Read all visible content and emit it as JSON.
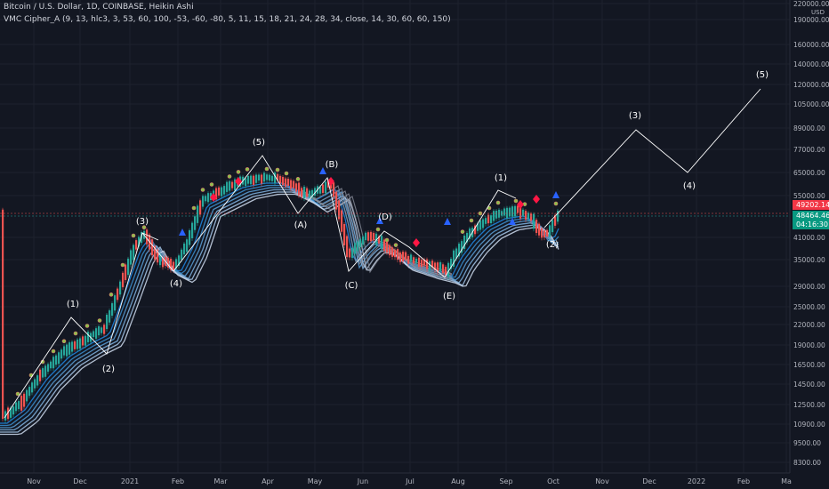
{
  "header": {
    "symbol_line": "Bitcoin / U.S. Dollar, 1D, COINBASE, Heikin Ashi",
    "indicator_line": "VMC Cipher_A (9, 13, hlc3, 3, 53, 60, 100, -53, -60, -80, 5, 11, 15, 18, 21, 24, 28, 34, close, 14, 30, 60, 60, 150)"
  },
  "colors": {
    "background": "#131722",
    "grid": "#1e222d",
    "up_candle": "#26a69a",
    "down_candle": "#ef5350",
    "wave_line": "#ffffff",
    "ribbon_up": "#3b8fd0",
    "ribbon_down": "#7a7f8c",
    "price_tag_red": "#f23645",
    "price_tag_green": "#089981",
    "signal_blue_triangle": "#2962ff",
    "signal_red_diamond": "#ff1744",
    "signal_green_dot": "#4caf50"
  },
  "price_axis": {
    "currency": "USD",
    "ticks": [
      "220000.00",
      "190000.00",
      "160000.00",
      "140000.00",
      "120000.00",
      "105000.00",
      "89000.00",
      "77000.00",
      "65000.00",
      "55000.00",
      "41000.00",
      "35000.00",
      "29000.00",
      "25000.00",
      "22000.00",
      "19000.00",
      "16500.00",
      "14500.00",
      "12500.00",
      "10900.00",
      "9500.00",
      "8300.00"
    ],
    "current_price_red": "49202.14",
    "current_price_green": "48464.46",
    "countdown": "04:16:30"
  },
  "time_axis": {
    "ticks": [
      "Nov",
      "Dec",
      "2021",
      "Feb",
      "Mar",
      "Apr",
      "May",
      "Jun",
      "Jul",
      "Aug",
      "Sep",
      "Oct",
      "Nov",
      "Dec",
      "2022",
      "Feb",
      "Ma"
    ]
  },
  "wave_labels": [
    "(1)",
    "(2)",
    "(3)",
    "(4)",
    "(5)",
    "(A)",
    "(B)",
    "(C)",
    "(D)",
    "(E)",
    "(1)",
    "(2)",
    "(3)",
    "(4)",
    "(5)"
  ],
  "chart_data": {
    "type": "candlestick",
    "y_scale": "log",
    "ylim": [
      7800,
      250000
    ],
    "x_months": [
      "2020-10",
      "2020-11",
      "2020-12",
      "2021-01",
      "2021-02",
      "2021-03",
      "2021-04",
      "2021-05",
      "2021-06",
      "2021-07",
      "2021-08",
      "2021-09",
      "2021-10",
      "2021-11",
      "2021-12",
      "2022-01",
      "2022-02",
      "2022-03"
    ],
    "series": [
      {
        "name": "BTC price path (approx)",
        "points": [
          {
            "date": "2020-10-01",
            "price": 10800
          },
          {
            "date": "2020-10-20",
            "price": 12200
          },
          {
            "date": "2020-11-10",
            "price": 15500
          },
          {
            "date": "2020-11-24",
            "price": 18500
          },
          {
            "date": "2020-12-15",
            "price": 19500
          },
          {
            "date": "2021-01-08",
            "price": 38500
          },
          {
            "date": "2021-01-22",
            "price": 32000
          },
          {
            "date": "2021-02-05",
            "price": 39000
          },
          {
            "date": "2021-02-20",
            "price": 55000
          },
          {
            "date": "2021-03-13",
            "price": 60000
          },
          {
            "date": "2021-04-14",
            "price": 63000
          },
          {
            "date": "2021-04-25",
            "price": 50000
          },
          {
            "date": "2021-05-08",
            "price": 58000
          },
          {
            "date": "2021-05-19",
            "price": 34000
          },
          {
            "date": "2021-06-10",
            "price": 38000
          },
          {
            "date": "2021-06-22",
            "price": 31000
          },
          {
            "date": "2021-07-20",
            "price": 30000
          },
          {
            "date": "2021-08-15",
            "price": 46000
          },
          {
            "date": "2021-09-06",
            "price": 51000
          },
          {
            "date": "2021-09-21",
            "price": 42000
          },
          {
            "date": "2021-10-03",
            "price": 48464
          }
        ]
      }
    ],
    "wave_projection": [
      {
        "label": "(2)",
        "date": "2021-10-01",
        "price": 42000
      },
      {
        "label": "(3)",
        "date": "2021-11-26",
        "price": 89000
      },
      {
        "label": "(4)",
        "date": "2021-12-28",
        "price": 65000
      },
      {
        "label": "(5)",
        "date": "2022-02-25",
        "price": 122000
      }
    ],
    "grid": true
  }
}
